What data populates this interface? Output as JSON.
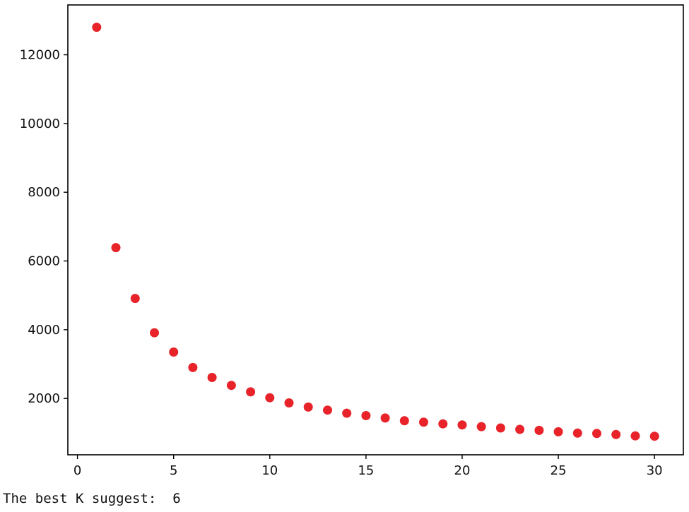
{
  "chart_data": {
    "type": "scatter",
    "title": "",
    "xlabel": "",
    "ylabel": "",
    "xlim": [
      -0.5,
      31.5
    ],
    "ylim": [
      360,
      13450
    ],
    "x_ticks": [
      0,
      5,
      10,
      15,
      20,
      25,
      30
    ],
    "y_ticks": [
      2000,
      4000,
      6000,
      8000,
      10000,
      12000
    ],
    "grid": false,
    "marker_color": "#e8242a",
    "x": [
      1,
      2,
      3,
      4,
      5,
      6,
      7,
      8,
      9,
      10,
      11,
      12,
      13,
      14,
      15,
      16,
      17,
      18,
      19,
      20,
      21,
      22,
      23,
      24,
      25,
      26,
      27,
      28,
      29,
      30
    ],
    "y": [
      12800,
      6390,
      4910,
      3910,
      3350,
      2900,
      2610,
      2380,
      2190,
      2020,
      1870,
      1750,
      1660,
      1570,
      1500,
      1430,
      1350,
      1310,
      1260,
      1230,
      1180,
      1140,
      1100,
      1070,
      1030,
      990,
      980,
      950,
      910,
      900
    ]
  },
  "console": {
    "text": "The best K suggest:  6"
  }
}
